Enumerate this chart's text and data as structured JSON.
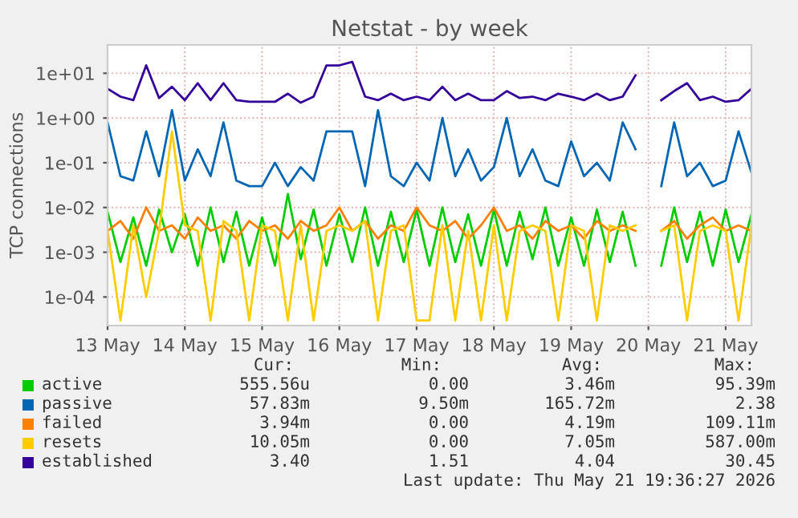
{
  "chart_data": {
    "type": "line",
    "title": "Netstat - by week",
    "ylabel": "TCP connections",
    "log": "y",
    "x": [
      "2026-05-13T00:00",
      "2026-05-13T04:00",
      "2026-05-13T08:00",
      "2026-05-13T12:00",
      "2026-05-13T16:00",
      "2026-05-13T20:00",
      "2026-05-14T00:00",
      "2026-05-14T04:00",
      "2026-05-14T08:00",
      "2026-05-14T12:00",
      "2026-05-14T16:00",
      "2026-05-14T20:00",
      "2026-05-15T00:00",
      "2026-05-15T04:00",
      "2026-05-15T08:00",
      "2026-05-15T12:00",
      "2026-05-15T16:00",
      "2026-05-15T20:00",
      "2026-05-16T00:00",
      "2026-05-16T04:00",
      "2026-05-16T08:00",
      "2026-05-16T12:00",
      "2026-05-16T16:00",
      "2026-05-16T20:00",
      "2026-05-17T00:00",
      "2026-05-17T04:00",
      "2026-05-17T08:00",
      "2026-05-17T12:00",
      "2026-05-17T16:00",
      "2026-05-17T20:00",
      "2026-05-18T00:00",
      "2026-05-18T04:00",
      "2026-05-18T08:00",
      "2026-05-18T12:00",
      "2026-05-18T16:00",
      "2026-05-18T20:00",
      "2026-05-19T00:00",
      "2026-05-19T04:00",
      "2026-05-19T08:00",
      "2026-05-19T12:00",
      "2026-05-19T16:00",
      "2026-05-19T20:00",
      "2026-05-20T00:00",
      "2026-05-20T04:00",
      "2026-05-20T08:00",
      "2026-05-20T12:00",
      "2026-05-20T16:00",
      "2026-05-20T20:00",
      "2026-05-21T00:00",
      "2026-05-21T04:00",
      "2026-05-21T08:00"
    ],
    "series": [
      {
        "name": "active",
        "color": "#00cc00",
        "values": [
          0.008,
          0.0006,
          0.006,
          0.0005,
          0.009,
          0.001,
          0.007,
          0.0005,
          0.01,
          0.0006,
          0.008,
          0.0005,
          0.006,
          0.0005,
          0.02,
          0.0007,
          0.009,
          0.0005,
          0.007,
          0.0006,
          0.01,
          0.0005,
          0.008,
          0.0006,
          0.009,
          0.0005,
          0.01,
          0.0006,
          0.007,
          0.0005,
          0.009,
          0.0005,
          0.008,
          0.0007,
          0.01,
          0.0005,
          0.006,
          0.0005,
          0.009,
          0.0006,
          0.008,
          0.0005,
          null,
          0.0005,
          0.01,
          0.0006,
          0.008,
          0.0005,
          0.009,
          0.0006,
          0.007
        ]
      },
      {
        "name": "passive",
        "color": "#0066b3",
        "values": [
          0.8,
          0.05,
          0.04,
          0.5,
          0.05,
          1.5,
          0.04,
          0.2,
          0.05,
          0.8,
          0.04,
          0.03,
          0.03,
          0.1,
          0.03,
          0.08,
          0.04,
          0.5,
          0.5,
          0.5,
          0.03,
          1.5,
          0.05,
          0.03,
          0.1,
          0.04,
          1,
          0.05,
          0.2,
          0.04,
          0.08,
          1,
          0.05,
          0.2,
          0.04,
          0.03,
          0.3,
          0.05,
          0.1,
          0.04,
          0.8,
          0.2,
          null,
          0.03,
          0.8,
          0.05,
          0.1,
          0.03,
          0.04,
          0.5,
          0.06
        ]
      },
      {
        "name": "failed",
        "color": "#ff8000",
        "values": [
          0.003,
          0.005,
          0.002,
          0.01,
          0.003,
          0.004,
          0.002,
          0.006,
          0.003,
          0.004,
          0.002,
          0.005,
          0.003,
          0.004,
          0.002,
          0.005,
          0.003,
          0.004,
          0.01,
          0.003,
          0.005,
          0.002,
          0.004,
          0.003,
          0.01,
          0.004,
          0.003,
          0.005,
          0.002,
          0.004,
          0.01,
          0.003,
          0.004,
          0.002,
          0.005,
          0.003,
          0.004,
          0.002,
          0.005,
          0.003,
          0.004,
          0.003,
          null,
          0.003,
          0.005,
          0.002,
          0.004,
          0.006,
          0.003,
          0.004,
          0.003
        ]
      },
      {
        "name": "resets",
        "color": "#ffcc00",
        "values": [
          0.003,
          3e-05,
          0.004,
          0.0001,
          0.003,
          0.5,
          0.004,
          0.003,
          3e-05,
          0.005,
          0.003,
          3e-05,
          0.004,
          0.003,
          3e-05,
          0.004,
          3e-05,
          0.003,
          0.004,
          0.003,
          0.005,
          3e-05,
          0.003,
          0.004,
          3e-05,
          3e-05,
          0.004,
          3e-05,
          0.003,
          3e-05,
          0.004,
          3e-05,
          0.003,
          0.004,
          0.003,
          3e-05,
          0.004,
          0.003,
          3e-05,
          0.004,
          0.003,
          0.004,
          null,
          0.003,
          0.004,
          3e-05,
          0.003,
          0.004,
          0.003,
          3e-05,
          0.004
        ]
      },
      {
        "name": "established",
        "color": "#330099",
        "values": [
          4.5,
          3,
          2.5,
          15,
          2.8,
          5,
          2.5,
          6,
          2.5,
          6,
          2.5,
          2.3,
          2.3,
          2.3,
          3.5,
          2.2,
          3,
          15,
          15,
          18,
          3,
          2.5,
          3.5,
          2.5,
          3,
          2.5,
          5,
          2.5,
          3.5,
          2.5,
          2.5,
          4,
          2.8,
          3,
          2.5,
          3.5,
          3,
          2.5,
          3.5,
          2.5,
          3,
          9,
          null,
          2.5,
          4,
          6,
          2.5,
          3,
          2.3,
          2.5,
          4.5
        ]
      }
    ],
    "xlim": [
      "2026-05-13T00:00",
      "2026-05-21T08:00"
    ],
    "xticks": [
      {
        "value": "2026-05-13",
        "label": "13 May"
      },
      {
        "value": "2026-05-14",
        "label": "14 May"
      },
      {
        "value": "2026-05-15",
        "label": "15 May"
      },
      {
        "value": "2026-05-16",
        "label": "16 May"
      },
      {
        "value": "2026-05-17",
        "label": "17 May"
      },
      {
        "value": "2026-05-18",
        "label": "18 May"
      },
      {
        "value": "2026-05-19",
        "label": "19 May"
      },
      {
        "value": "2026-05-20",
        "label": "20 May"
      },
      {
        "value": "2026-05-21",
        "label": "21 May"
      }
    ],
    "ylim": [
      2.3e-05,
      43
    ],
    "yticks": [
      {
        "value": 0.0001,
        "label": "1e-04"
      },
      {
        "value": 0.001,
        "label": "1e-03"
      },
      {
        "value": 0.01,
        "label": "1e-02"
      },
      {
        "value": 0.1,
        "label": "1e-01"
      },
      {
        "value": 1,
        "label": "1e+00"
      },
      {
        "value": 10,
        "label": "1e+01"
      }
    ],
    "grid": true,
    "legend": "bottom",
    "annotations": [
      "Cur:",
      "Min:",
      "Avg:",
      "Max:",
      "555.56u",
      "0.00",
      "3.46m",
      "95.39m",
      "57.83m",
      "9.50m",
      "165.72m",
      "2.38",
      "3.94m",
      "0.00",
      "4.19m",
      "109.11m",
      "10.05m",
      "0.00",
      "7.05m",
      "587.00m",
      "3.40",
      "1.51",
      "4.04",
      "30.45",
      "Last update: Thu May 21 19:36:27 2026"
    ]
  }
}
